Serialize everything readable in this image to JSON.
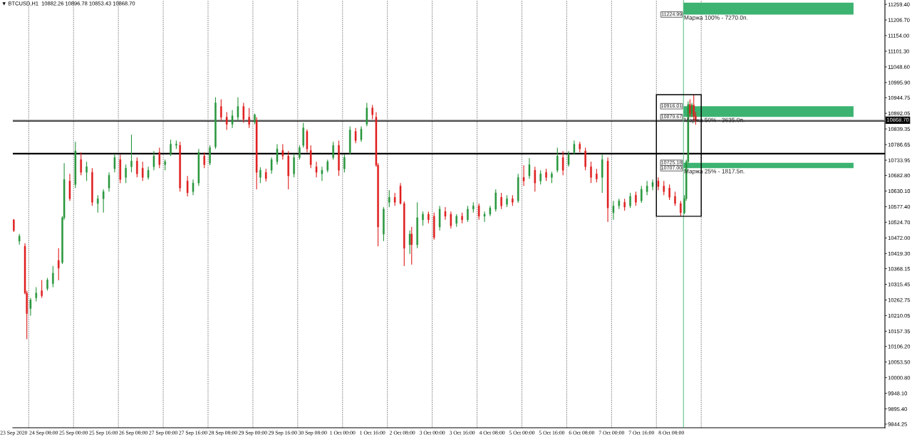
{
  "chart_data": {
    "type": "candlestick",
    "title": "▼ BTCUSD,H1  10882.26 10896.78 10853.43 10868.70",
    "x": [
      "2020-09-23T16:00",
      "2020-09-23T19:00",
      "2020-09-23T22:00",
      "2020-09-23T23:00",
      "2020-09-24T01:00",
      "2020-09-24T04:00",
      "2020-09-24T07:00",
      "2020-09-24T10:00",
      "2020-09-24T13:00",
      "2020-09-24T16:00",
      "2020-09-24T18:00",
      "2020-09-24T19:00",
      "2020-09-24T22:00",
      "2020-09-25T01:00",
      "2020-09-25T04:00",
      "2020-09-25T07:00",
      "2020-09-25T10:00",
      "2020-09-25T13:00",
      "2020-09-25T16:00",
      "2020-09-25T19:00",
      "2020-09-25T22:00",
      "2020-09-26T01:00",
      "2020-09-26T04:00",
      "2020-09-26T07:00",
      "2020-09-26T10:00",
      "2020-09-26T13:00",
      "2020-09-26T16:00",
      "2020-09-26T19:00",
      "2020-09-26T22:00",
      "2020-09-27T01:00",
      "2020-09-27T04:00",
      "2020-09-27T07:00",
      "2020-09-27T09:00",
      "2020-09-27T13:00",
      "2020-09-27T16:00",
      "2020-09-27T19:00",
      "2020-09-27T22:00",
      "2020-09-28T01:00",
      "2020-09-28T04:00",
      "2020-09-28T07:00",
      "2020-09-28T10:00",
      "2020-09-28T13:00",
      "2020-09-28T16:00",
      "2020-09-28T19:00",
      "2020-09-28T22:00",
      "2020-09-29T01:00",
      "2020-09-29T02:00",
      "2020-09-29T04:00",
      "2020-09-29T07:00",
      "2020-09-29T10:00",
      "2020-09-29T13:00",
      "2020-09-29T16:00",
      "2020-09-29T19:00",
      "2020-09-29T22:00",
      "2020-09-30T01:00",
      "2020-09-30T03:00",
      "2020-09-30T05:00",
      "2020-09-30T07:00",
      "2020-09-30T10:00",
      "2020-09-30T13:00",
      "2020-09-30T16:00",
      "2020-09-30T19:00",
      "2020-09-30T22:00",
      "2020-10-01T01:00",
      "2020-10-01T04:00",
      "2020-10-01T07:00",
      "2020-10-01T10:00",
      "2020-10-01T13:00",
      "2020-10-01T16:00",
      "2020-10-01T18:00",
      "2020-10-01T19:00",
      "2020-10-01T22:00",
      "2020-10-02T01:00",
      "2020-10-02T04:00",
      "2020-10-02T07:00",
      "2020-10-02T09:00",
      "2020-10-02T12:00",
      "2020-10-02T13:00",
      "2020-10-02T16:00",
      "2020-10-02T19:00",
      "2020-10-02T22:00",
      "2020-10-03T01:00",
      "2020-10-03T04:00",
      "2020-10-03T07:00",
      "2020-10-03T10:00",
      "2020-10-03T13:00",
      "2020-10-03T16:00",
      "2020-10-03T19:00",
      "2020-10-03T22:00",
      "2020-10-04T01:00",
      "2020-10-04T04:00",
      "2020-10-04T07:00",
      "2020-10-04T10:00",
      "2020-10-04T13:00",
      "2020-10-04T16:00",
      "2020-10-04T19:00",
      "2020-10-04T22:00",
      "2020-10-05T01:00",
      "2020-10-05T04:00",
      "2020-10-05T07:00",
      "2020-10-05T10:00",
      "2020-10-05T13:00",
      "2020-10-05T16:00",
      "2020-10-05T19:00",
      "2020-10-05T22:00",
      "2020-10-06T01:00",
      "2020-10-06T04:00",
      "2020-10-06T07:00",
      "2020-10-06T10:00",
      "2020-10-06T13:00",
      "2020-10-06T16:00",
      "2020-10-06T19:00",
      "2020-10-06T22:00",
      "2020-10-07T01:00",
      "2020-10-07T04:00",
      "2020-10-07T07:00",
      "2020-10-07T10:00",
      "2020-10-07T13:00",
      "2020-10-07T16:00",
      "2020-10-07T19:00",
      "2020-10-07T22:00",
      "2020-10-08T01:00",
      "2020-10-08T04:00",
      "2020-10-08T07:00",
      "2020-10-08T10:00",
      "2020-10-08T13:00",
      "2020-10-08T15:00",
      "2020-10-08T16:00",
      "2020-10-08T17:00",
      "2020-10-08T18:00",
      "2020-10-08T19:00",
      "2020-10-08T20:00",
      "2020-10-08T21:00"
    ],
    "ohlc": [
      [
        10533,
        10535,
        10492,
        10497
      ],
      [
        10461,
        10485,
        10449,
        10478
      ],
      [
        10444,
        10454,
        10282,
        10286
      ],
      [
        10286,
        10294,
        10131,
        10217
      ],
      [
        10234,
        10270,
        10210,
        10263
      ],
      [
        10270,
        10306,
        10258,
        10286
      ],
      [
        10294,
        10330,
        10270,
        10277
      ],
      [
        10301,
        10337,
        10294,
        10330
      ],
      [
        10318,
        10377,
        10306,
        10353
      ],
      [
        10396,
        10437,
        10329,
        10370
      ],
      [
        10389,
        10545,
        10384,
        10540
      ],
      [
        10540,
        10724,
        10533,
        10669
      ],
      [
        10664,
        10688,
        10597,
        10604
      ],
      [
        10652,
        10796,
        10640,
        10765
      ],
      [
        10736,
        10760,
        10683,
        10693
      ],
      [
        10693,
        10729,
        10664,
        10712
      ],
      [
        10693,
        10707,
        10580,
        10592
      ],
      [
        10588,
        10616,
        10557,
        10604
      ],
      [
        10604,
        10636,
        10557,
        10628
      ],
      [
        10640,
        10693,
        10628,
        10683
      ],
      [
        10705,
        10755,
        10693,
        10743
      ],
      [
        10736,
        10753,
        10657,
        10669
      ],
      [
        10676,
        10719,
        10657,
        10707
      ],
      [
        10712,
        10820,
        10693,
        10731
      ],
      [
        10731,
        10743,
        10676,
        10688
      ],
      [
        10707,
        10729,
        10664,
        10676
      ],
      [
        10676,
        10712,
        10669,
        10700
      ],
      [
        10712,
        10765,
        10700,
        10748
      ],
      [
        10760,
        10776,
        10707,
        10719
      ],
      [
        10719,
        10736,
        10700,
        10729
      ],
      [
        10753,
        10803,
        10748,
        10788
      ],
      [
        10784,
        10800,
        10772,
        10788
      ],
      [
        10784,
        10796,
        10628,
        10640
      ],
      [
        10664,
        10681,
        10612,
        10624
      ],
      [
        10628,
        10669,
        10616,
        10657
      ],
      [
        10657,
        10772,
        10647,
        10760
      ],
      [
        10748,
        10760,
        10707,
        10719
      ],
      [
        10724,
        10784,
        10717,
        10776
      ],
      [
        10779,
        10946,
        10772,
        10927
      ],
      [
        10915,
        10939,
        10867,
        10879
      ],
      [
        10879,
        10896,
        10836,
        10855
      ],
      [
        10855,
        10903,
        10843,
        10884
      ],
      [
        10879,
        10946,
        10867,
        10915
      ],
      [
        10915,
        10927,
        10860,
        10872
      ],
      [
        10879,
        10910,
        10843,
        10855
      ],
      [
        10862,
        10891,
        10855,
        10887
      ],
      [
        10867,
        10879,
        10636,
        10693
      ],
      [
        10676,
        10710,
        10657,
        10700
      ],
      [
        10693,
        10705,
        10662,
        10672
      ],
      [
        10700,
        10743,
        10688,
        10736
      ],
      [
        10729,
        10788,
        10719,
        10772
      ],
      [
        10767,
        10788,
        10736,
        10748
      ],
      [
        10748,
        10765,
        10636,
        10681
      ],
      [
        10688,
        10755,
        10676,
        10743
      ],
      [
        10743,
        10784,
        10736,
        10776
      ],
      [
        10784,
        10860,
        10776,
        10843
      ],
      [
        10831,
        10838,
        10760,
        10772
      ],
      [
        10767,
        10784,
        10707,
        10719
      ],
      [
        10712,
        10729,
        10676,
        10693
      ],
      [
        10688,
        10712,
        10664,
        10700
      ],
      [
        10700,
        10736,
        10693,
        10729
      ],
      [
        10743,
        10796,
        10736,
        10784
      ],
      [
        10784,
        10800,
        10681,
        10700
      ],
      [
        10705,
        10753,
        10693,
        10743
      ],
      [
        10760,
        10848,
        10753,
        10836
      ],
      [
        10831,
        10843,
        10791,
        10800
      ],
      [
        10803,
        10848,
        10796,
        10839
      ],
      [
        10855,
        10927,
        10848,
        10910
      ],
      [
        10910,
        10920,
        10872,
        10887
      ],
      [
        10879,
        10896,
        10712,
        10717
      ],
      [
        10717,
        10724,
        10444,
        10509
      ],
      [
        10485,
        10576,
        10461,
        10569
      ],
      [
        10592,
        10633,
        10576,
        10609
      ],
      [
        10609,
        10624,
        10580,
        10592
      ],
      [
        10647,
        10657,
        10585,
        10588
      ],
      [
        10588,
        10595,
        10377,
        10437
      ],
      [
        10449,
        10497,
        10418,
        10485
      ],
      [
        10485,
        10509,
        10382,
        10449
      ],
      [
        10449,
        10592,
        10437,
        10540
      ],
      [
        10533,
        10561,
        10513,
        10552
      ],
      [
        10552,
        10561,
        10521,
        10533
      ],
      [
        10545,
        10557,
        10466,
        10473
      ],
      [
        10509,
        10580,
        10497,
        10569
      ],
      [
        10561,
        10576,
        10533,
        10545
      ],
      [
        10552,
        10561,
        10504,
        10513
      ],
      [
        10521,
        10552,
        10509,
        10545
      ],
      [
        10545,
        10557,
        10521,
        10533
      ],
      [
        10533,
        10580,
        10526,
        10569
      ],
      [
        10569,
        10592,
        10557,
        10580
      ],
      [
        10580,
        10588,
        10533,
        10545
      ],
      [
        10545,
        10561,
        10526,
        10552
      ],
      [
        10552,
        10580,
        10545,
        10573
      ],
      [
        10569,
        10636,
        10561,
        10624
      ],
      [
        10609,
        10624,
        10569,
        10580
      ],
      [
        10585,
        10616,
        10576,
        10604
      ],
      [
        10604,
        10616,
        10580,
        10592
      ],
      [
        10597,
        10688,
        10590,
        10676
      ],
      [
        10676,
        10717,
        10647,
        10664
      ],
      [
        10681,
        10741,
        10671,
        10719
      ],
      [
        10700,
        10712,
        10628,
        10657
      ],
      [
        10664,
        10700,
        10652,
        10688
      ],
      [
        10693,
        10705,
        10664,
        10676
      ],
      [
        10676,
        10695,
        10657,
        10688
      ],
      [
        10700,
        10776,
        10693,
        10748
      ],
      [
        10743,
        10765,
        10683,
        10700
      ],
      [
        10719,
        10765,
        10712,
        10755
      ],
      [
        10760,
        10800,
        10753,
        10788
      ],
      [
        10788,
        10796,
        10760,
        10772
      ],
      [
        10765,
        10776,
        10700,
        10712
      ],
      [
        10712,
        10729,
        10657,
        10676
      ],
      [
        10688,
        10705,
        10659,
        10671
      ],
      [
        10676,
        10753,
        10624,
        10736
      ],
      [
        10731,
        10743,
        10526,
        10573
      ],
      [
        10557,
        10597,
        10533,
        10580
      ],
      [
        10580,
        10604,
        10569,
        10597
      ],
      [
        10592,
        10604,
        10564,
        10576
      ],
      [
        10580,
        10624,
        10573,
        10612
      ],
      [
        10616,
        10628,
        10580,
        10592
      ],
      [
        10597,
        10647,
        10590,
        10636
      ],
      [
        10628,
        10664,
        10616,
        10647
      ],
      [
        10645,
        10669,
        10633,
        10659
      ],
      [
        10664,
        10676,
        10633,
        10645
      ],
      [
        10647,
        10664,
        10616,
        10628
      ],
      [
        10640,
        10652,
        10600,
        10609
      ],
      [
        10612,
        10628,
        10580,
        10588
      ],
      [
        10588,
        10597,
        10545,
        10557
      ],
      [
        10557,
        10616,
        10552,
        10604
      ],
      [
        10604,
        10736,
        10597,
        10729
      ],
      [
        10729,
        10932,
        10724,
        10922
      ],
      [
        10922,
        10939,
        10879,
        10891
      ],
      [
        10891,
        10927,
        10879,
        10920
      ],
      [
        10920,
        10955,
        10867,
        10882
      ],
      [
        10882.26,
        10896.78,
        10853.43,
        10868.7
      ]
    ],
    "colors": [
      "#e01e1e",
      "#28963c",
      "#e01e1e",
      "#e01e1e",
      "#28963c",
      "#28963c",
      "#e01e1e",
      "#28963c",
      "#28963c",
      "#e01e1e",
      "#28963c",
      "#28963c",
      "#e01e1e",
      "#28963c",
      "#e01e1e",
      "#28963c",
      "#e01e1e",
      "#28963c",
      "#28963c",
      "#28963c",
      "#28963c",
      "#e01e1e",
      "#28963c",
      "#28963c",
      "#e01e1e",
      "#e01e1e",
      "#28963c",
      "#28963c",
      "#e01e1e",
      "#28963c",
      "#28963c",
      "#28963c",
      "#e01e1e",
      "#e01e1e",
      "#28963c",
      "#28963c",
      "#e01e1e",
      "#28963c",
      "#28963c",
      "#e01e1e",
      "#e01e1e",
      "#28963c",
      "#28963c",
      "#e01e1e",
      "#e01e1e",
      "#28963c",
      "#e01e1e",
      "#28963c",
      "#e01e1e",
      "#28963c",
      "#28963c",
      "#e01e1e",
      "#e01e1e",
      "#28963c",
      "#28963c",
      "#28963c",
      "#e01e1e",
      "#e01e1e",
      "#e01e1e",
      "#28963c",
      "#28963c",
      "#28963c",
      "#e01e1e",
      "#28963c",
      "#28963c",
      "#e01e1e",
      "#28963c",
      "#28963c",
      "#e01e1e",
      "#e01e1e",
      "#e01e1e",
      "#28963c",
      "#28963c",
      "#e01e1e",
      "#e01e1e",
      "#e01e1e",
      "#28963c",
      "#e01e1e",
      "#28963c",
      "#28963c",
      "#e01e1e",
      "#e01e1e",
      "#28963c",
      "#e01e1e",
      "#e01e1e",
      "#28963c",
      "#e01e1e",
      "#28963c",
      "#28963c",
      "#e01e1e",
      "#28963c",
      "#28963c",
      "#28963c",
      "#e01e1e",
      "#28963c",
      "#e01e1e",
      "#28963c",
      "#e01e1e",
      "#28963c",
      "#e01e1e",
      "#28963c",
      "#e01e1e",
      "#28963c",
      "#28963c",
      "#e01e1e",
      "#28963c",
      "#28963c",
      "#e01e1e",
      "#e01e1e",
      "#e01e1e",
      "#e01e1e",
      "#28963c",
      "#e01e1e",
      "#28963c",
      "#28963c",
      "#e01e1e",
      "#28963c",
      "#e01e1e",
      "#28963c",
      "#28963c",
      "#28963c",
      "#e01e1e",
      "#e01e1e",
      "#e01e1e",
      "#e01e1e",
      "#e01e1e",
      "#28963c",
      "#28963c",
      "#28963c",
      "#e01e1e",
      "#28963c",
      "#e01e1e",
      "#e01e1e"
    ],
    "xlim": [
      "2020-09-23T15:30",
      "2020-10-13T02:20"
    ],
    "xticks": [
      {
        "value": "2020-09-23T16:00",
        "label": "23 Sep 2020"
      },
      {
        "value": "2020-09-24T00:00",
        "label": null
      },
      {
        "value": "2020-09-24T08:00",
        "label": "24 Sep 08:00"
      },
      {
        "value": "2020-09-25T00:00",
        "label": "25 Sep 00:00"
      },
      {
        "value": "2020-09-25T16:00",
        "label": "25 Sep 16:00"
      },
      {
        "value": "2020-09-26T00:00",
        "label": null
      },
      {
        "value": "2020-09-26T08:00",
        "label": "26 Sep 08:00"
      },
      {
        "value": "2020-09-27T00:00",
        "label": "27 Sep 00:00"
      },
      {
        "value": "2020-09-27T16:00",
        "label": "27 Sep 16:00"
      },
      {
        "value": "2020-09-28T00:00",
        "label": null
      },
      {
        "value": "2020-09-28T08:00",
        "label": "28 Sep 08:00"
      },
      {
        "value": "2020-09-29T00:00",
        "label": "29 Sep 00:00"
      },
      {
        "value": "2020-09-29T16:00",
        "label": "29 Sep 16:00"
      },
      {
        "value": "2020-09-30T00:00",
        "label": null
      },
      {
        "value": "2020-09-30T08:00",
        "label": "30 Sep 08:00"
      },
      {
        "value": "2020-10-01T00:00",
        "label": "1 Oct 00:00"
      },
      {
        "value": "2020-10-01T16:00",
        "label": "1 Oct 16:00"
      },
      {
        "value": "2020-10-02T00:00",
        "label": null
      },
      {
        "value": "2020-10-02T08:00",
        "label": "2 Oct 08:00"
      },
      {
        "value": "2020-10-03T00:00",
        "label": "3 Oct 00:00"
      },
      {
        "value": "2020-10-03T16:00",
        "label": "3 Oct 16:00"
      },
      {
        "value": "2020-10-04T00:00",
        "label": null
      },
      {
        "value": "2020-10-04T08:00",
        "label": "4 Oct 08:00"
      },
      {
        "value": "2020-10-05T00:00",
        "label": "5 Oct 00:00"
      },
      {
        "value": "2020-10-05T16:00",
        "label": "5 Oct 16:00"
      },
      {
        "value": "2020-10-06T00:00",
        "label": null
      },
      {
        "value": "2020-10-06T08:00",
        "label": "6 Oct 08:00"
      },
      {
        "value": "2020-10-07T00:00",
        "label": "7 Oct 00:00"
      },
      {
        "value": "2020-10-07T16:00",
        "label": "7 Oct 16:00"
      },
      {
        "value": "2020-10-08T00:00",
        "label": null
      },
      {
        "value": "2020-10-08T08:00",
        "label": "8 Oct 08:00"
      },
      {
        "value": "2020-10-09T00:00",
        "label": null
      }
    ],
    "ylim": [
      9832,
      11274
    ],
    "yticks": [
      {
        "value": 11259.4,
        "label": "11259.40"
      },
      {
        "value": 11206.7,
        "label": "11206.70"
      },
      {
        "value": 11154.0,
        "label": "11154.00"
      },
      {
        "value": 11101.3,
        "label": "11101.30"
      },
      {
        "value": 11048.6,
        "label": "11048.60"
      },
      {
        "value": 10995.9,
        "label": "10995.90"
      },
      {
        "value": 10944.75,
        "label": "10944.75"
      },
      {
        "value": 10892.05,
        "label": "10892.05"
      },
      {
        "value": 10839.35,
        "label": "10839.35"
      },
      {
        "value": 10786.65,
        "label": "10786.65"
      },
      {
        "value": 10733.95,
        "label": "10733.95"
      },
      {
        "value": 10682.8,
        "label": "10682.80"
      },
      {
        "value": 10630.1,
        "label": "10630.10"
      },
      {
        "value": 10577.4,
        "label": "10577.40"
      },
      {
        "value": 10524.7,
        "label": "10524.70"
      },
      {
        "value": 10472.0,
        "label": "10472.00"
      },
      {
        "value": 10419.3,
        "label": "10419.30"
      },
      {
        "value": 10368.15,
        "label": "10368.15"
      },
      {
        "value": 10315.45,
        "label": "10315.45"
      },
      {
        "value": 10262.75,
        "label": "10262.75"
      },
      {
        "value": 10210.05,
        "label": "10210.05"
      },
      {
        "value": 10157.35,
        "label": "10157.35"
      },
      {
        "value": 10106.2,
        "label": "10106.20"
      },
      {
        "value": 10053.5,
        "label": "10053.50"
      },
      {
        "value": 10000.8,
        "label": "10000.80"
      },
      {
        "value": 9948.1,
        "label": "9948.10"
      },
      {
        "value": 9895.4,
        "label": "9895.40"
      },
      {
        "value": 9844.25,
        "label": "9844.25"
      }
    ],
    "grid": "x",
    "ref_lines": [
      {
        "axis": "y",
        "value": 10867,
        "color": "#000000"
      },
      {
        "axis": "y",
        "value": 10756,
        "color": "#000000"
      },
      {
        "axis": "y",
        "value": 10868.7,
        "label": "10868.70",
        "color": "#c0c0c0"
      },
      {
        "axis": "x",
        "value": "2020-10-08T14:30",
        "color": "#3cb371"
      }
    ],
    "bands": [
      {
        "axis": "y",
        "from": 11224.99,
        "to": 11265,
        "label": "Маржа 100% - 7270.0п.",
        "color": "#3cb371"
      },
      {
        "axis": "y",
        "from": 10879.67,
        "to": 10916.01,
        "label": "Маржа 50% - 3635.0п.",
        "color": "#3cb371"
      },
      {
        "axis": "y",
        "from": 10707,
        "to": 10725.18,
        "label": "Маржа 25% - 1817.5п.",
        "color": "#3cb371"
      }
    ],
    "annotations": [
      {
        "text": "11224.99",
        "x": "2020-10-08T14:30",
        "y": 11224.99
      },
      {
        "text": "10916.01",
        "x": "2020-10-08T14:30",
        "y": 10916.01
      },
      {
        "text": "10879.67",
        "x": "2020-10-08T14:30",
        "y": 10879.67
      },
      {
        "text": "10725.18",
        "x": "2020-10-08T14:30",
        "y": 10725.18
      },
      {
        "text": "10707.00",
        "x": "2020-10-08T14:30",
        "y": 10707
      }
    ]
  }
}
